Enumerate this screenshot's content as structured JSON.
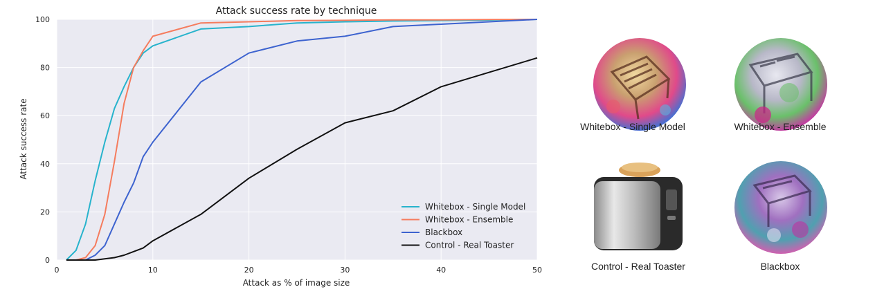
{
  "chart_data": {
    "type": "line",
    "title": "Attack success rate by technique",
    "xlabel": "Attack as % of image size",
    "ylabel": "Attack success rate",
    "xlim": [
      0,
      50
    ],
    "ylim": [
      0,
      100
    ],
    "xticks": [
      "0",
      "10",
      "20",
      "30",
      "40",
      "50"
    ],
    "yticks": [
      "0",
      "20",
      "40",
      "60",
      "80",
      "100"
    ],
    "grid": true,
    "legend_position": "bottom-right",
    "series": [
      {
        "name": "Whitebox - Single Model",
        "color": "#27b3cc",
        "x": [
          1,
          2,
          3,
          4,
          5,
          6,
          7,
          8,
          9,
          10,
          15,
          20,
          25,
          30,
          35,
          40,
          45,
          50
        ],
        "y": [
          0,
          4,
          15,
          33,
          49,
          63,
          72,
          80,
          86,
          89,
          96,
          97,
          98.5,
          99,
          99.3,
          99.5,
          99.7,
          100
        ]
      },
      {
        "name": "Whitebox - Ensemble",
        "color": "#f57c5e",
        "x": [
          1,
          2,
          3,
          4,
          5,
          6,
          7,
          8,
          9,
          10,
          15,
          20,
          25,
          30,
          35,
          40,
          45,
          50
        ],
        "y": [
          0,
          0,
          1,
          6,
          19,
          41,
          65,
          80,
          87,
          93,
          98.5,
          99,
          99.5,
          99.6,
          99.8,
          99.8,
          99.9,
          100
        ]
      },
      {
        "name": "Blackbox",
        "color": "#3d63cf",
        "x": [
          1,
          2,
          3,
          4,
          5,
          6,
          7,
          8,
          9,
          10,
          15,
          20,
          25,
          30,
          35,
          40,
          45,
          50
        ],
        "y": [
          0,
          0,
          0,
          2,
          6,
          15,
          24,
          32,
          43,
          49,
          74,
          86,
          91,
          93,
          97,
          98,
          99,
          100
        ]
      },
      {
        "name": "Control - Real Toaster",
        "color": "#111111",
        "x": [
          1,
          2,
          3,
          4,
          5,
          6,
          7,
          8,
          9,
          10,
          15,
          20,
          25,
          30,
          35,
          40,
          45,
          50
        ],
        "y": [
          0,
          0,
          0,
          0,
          0.5,
          1,
          2,
          3.5,
          5,
          8,
          19,
          34,
          46,
          57,
          62,
          72,
          78,
          84
        ]
      }
    ]
  },
  "thumbnails": [
    {
      "label": "Whitebox - Single Model",
      "icon": "patch-single-model-icon",
      "colors": [
        "#c9a070",
        "#e04a8a",
        "#4a6fd0"
      ]
    },
    {
      "label": "Whitebox - Ensemble",
      "icon": "patch-ensemble-icon",
      "colors": [
        "#b8b8c8",
        "#6ac06a",
        "#c040a0"
      ]
    },
    {
      "label": "Control - Real Toaster",
      "icon": "real-toaster-icon",
      "colors": [
        "#bfbfbf",
        "#2a2a2a",
        "#d9a25a"
      ]
    },
    {
      "label": "Blackbox",
      "icon": "patch-blackbox-icon",
      "colors": [
        "#a070c0",
        "#50a0b0",
        "#d060b0"
      ]
    }
  ]
}
